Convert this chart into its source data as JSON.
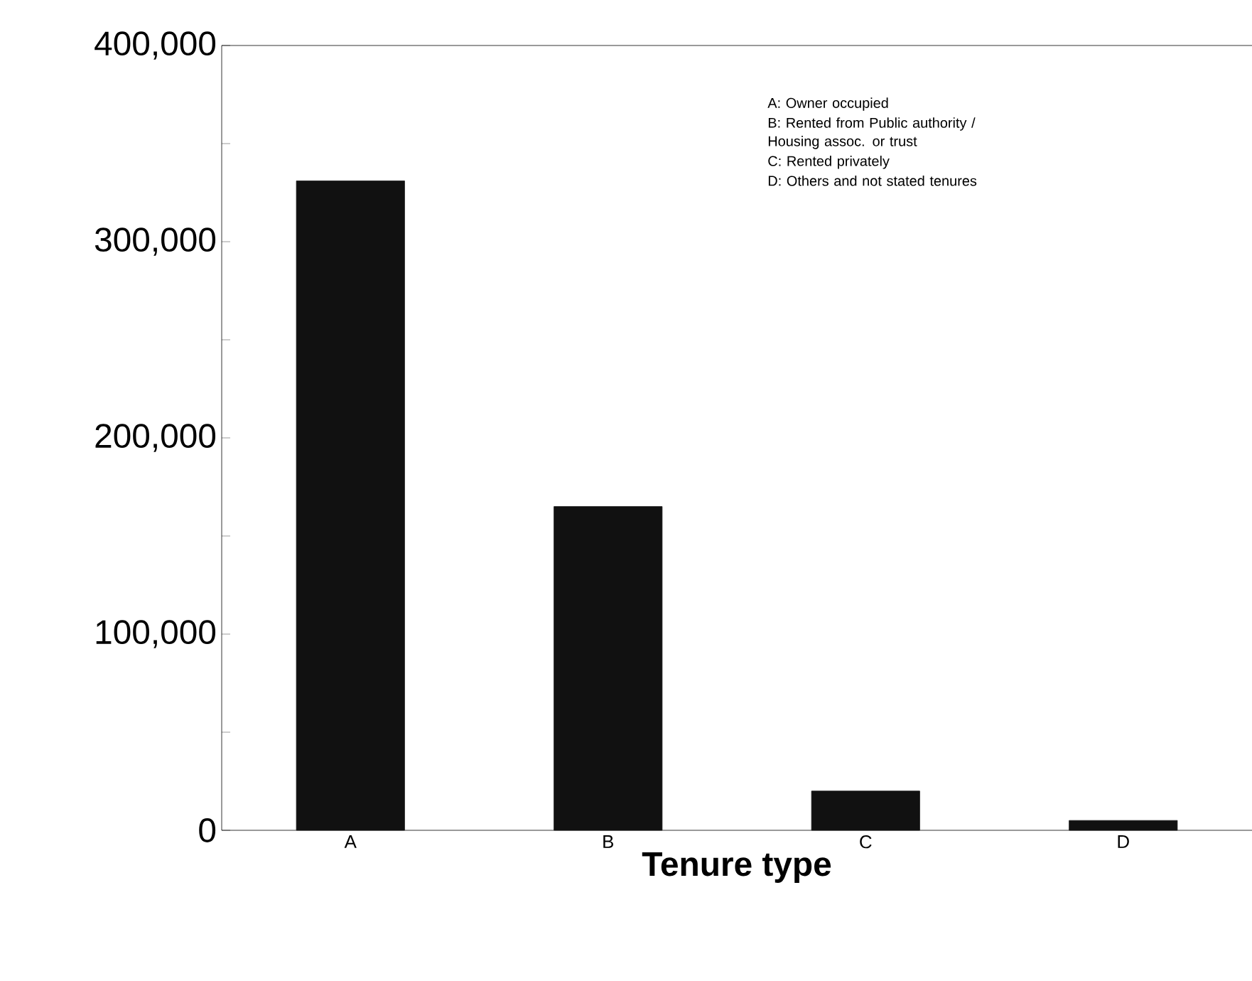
{
  "chart_data": {
    "type": "bar",
    "xlabel": "Tenure type",
    "categories": [
      "A",
      "B",
      "C",
      "D"
    ],
    "values": [
      331000,
      165000,
      20000,
      5000
    ],
    "color": "#111111",
    "ylim": [
      0,
      400000
    ],
    "yticks": [
      0,
      {
        "value": 50000,
        "label": null
      },
      {
        "value": 100000,
        "label": "100,000"
      },
      {
        "value": 150000,
        "label": null
      },
      {
        "value": 200000,
        "label": "200,000"
      },
      {
        "value": 250000,
        "label": null
      },
      {
        "value": 300000,
        "label": "300,000"
      },
      {
        "value": 350000,
        "label": null
      },
      {
        "value": 400000,
        "label": "400,000"
      }
    ],
    "annotations": [
      "A: Owner occupied",
      "B: Rented from Public authority / Housing assoc. or trust",
      "C: Rented privately",
      "D: Others and not stated tenures"
    ]
  }
}
